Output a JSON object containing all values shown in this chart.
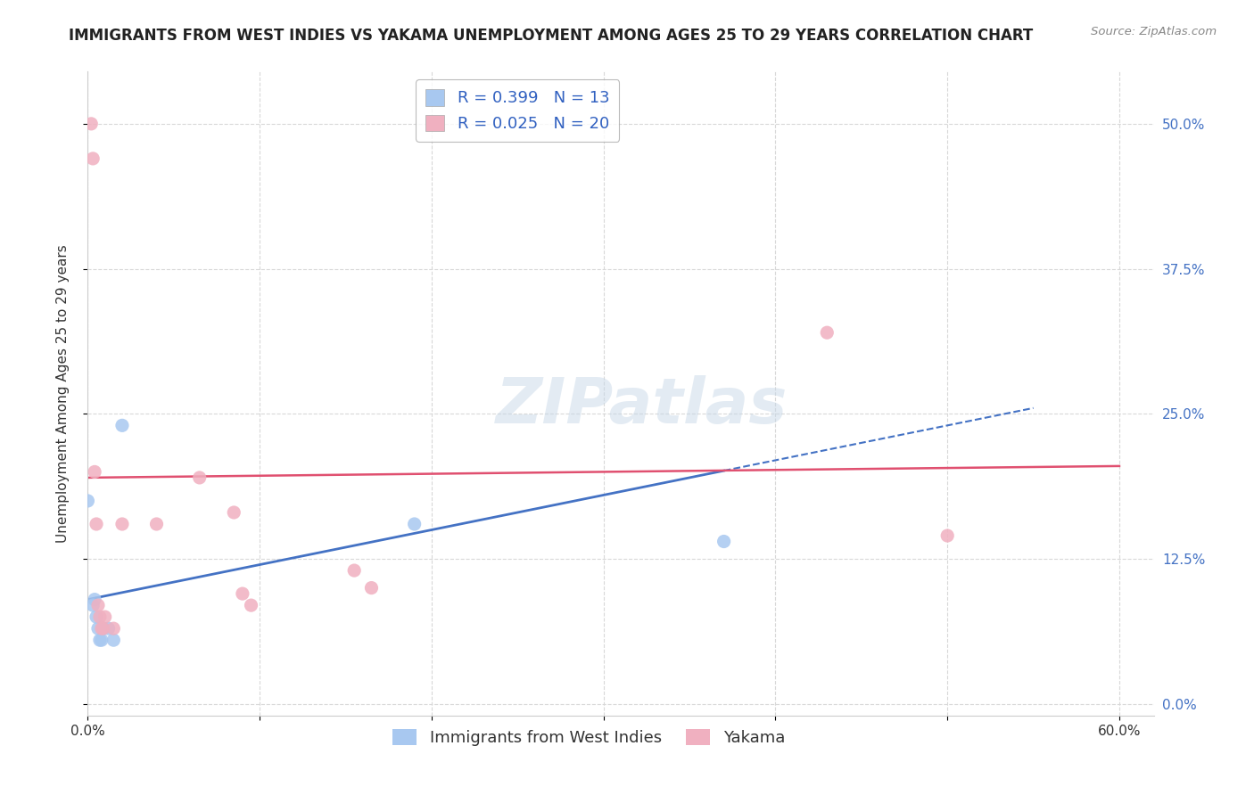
{
  "title": "IMMIGRANTS FROM WEST INDIES VS YAKAMA UNEMPLOYMENT AMONG AGES 25 TO 29 YEARS CORRELATION CHART",
  "source": "Source: ZipAtlas.com",
  "ylabel": "Unemployment Among Ages 25 to 29 years",
  "xlim": [
    0.0,
    0.62
  ],
  "ylim": [
    -0.01,
    0.545
  ],
  "yticks": [
    0.0,
    0.125,
    0.25,
    0.375,
    0.5
  ],
  "ytick_labels_left": [
    "",
    "",
    "",
    "",
    ""
  ],
  "ytick_labels_right": [
    "0.0%",
    "12.5%",
    "25.0%",
    "37.5%",
    "50.0%"
  ],
  "xticks": [
    0.0,
    0.1,
    0.2,
    0.3,
    0.4,
    0.5,
    0.6
  ],
  "xtick_labels": [
    "0.0%",
    "",
    "",
    "",
    "",
    "",
    "60.0%"
  ],
  "background_color": "#ffffff",
  "grid_color": "#d8d8d8",
  "watermark_text": "ZIPatlas",
  "series": [
    {
      "name": "Immigrants from West Indies",
      "color": "#a8c8f0",
      "R": 0.399,
      "N": 13,
      "points_x": [
        0.0,
        0.003,
        0.004,
        0.005,
        0.006,
        0.007,
        0.008,
        0.009,
        0.012,
        0.015,
        0.02,
        0.19,
        0.37
      ],
      "points_y": [
        0.175,
        0.085,
        0.09,
        0.075,
        0.065,
        0.055,
        0.055,
        0.065,
        0.065,
        0.055,
        0.24,
        0.155,
        0.14
      ],
      "trendline_x": [
        0.0,
        0.55
      ],
      "trendline_y": [
        0.09,
        0.255
      ],
      "line_color": "#4472c4",
      "line_style": "-"
    },
    {
      "name": "Yakama",
      "color": "#f0b0c0",
      "R": 0.025,
      "N": 20,
      "points_x": [
        0.002,
        0.003,
        0.004,
        0.005,
        0.006,
        0.007,
        0.008,
        0.009,
        0.01,
        0.015,
        0.02,
        0.04,
        0.065,
        0.085,
        0.09,
        0.095,
        0.155,
        0.165,
        0.43,
        0.5
      ],
      "points_y": [
        0.5,
        0.47,
        0.2,
        0.155,
        0.085,
        0.075,
        0.065,
        0.065,
        0.075,
        0.065,
        0.155,
        0.155,
        0.195,
        0.165,
        0.095,
        0.085,
        0.115,
        0.1,
        0.32,
        0.145
      ],
      "trendline_x": [
        0.0,
        0.6
      ],
      "trendline_y": [
        0.195,
        0.205
      ],
      "line_color": "#e05070",
      "line_style": "-"
    }
  ],
  "legend_entries": [
    {
      "label": "R = 0.399   N = 13",
      "color": "#a8c8f0"
    },
    {
      "label": "R = 0.025   N = 20",
      "color": "#f0b0c0"
    }
  ],
  "bottom_legend": [
    {
      "label": "Immigrants from West Indies",
      "color": "#a8c8f0"
    },
    {
      "label": "Yakama",
      "color": "#f0b0c0"
    }
  ],
  "title_fontsize": 12,
  "axis_fontsize": 11,
  "tick_fontsize": 11,
  "legend_fontsize": 13,
  "right_tick_color": "#4472c4"
}
